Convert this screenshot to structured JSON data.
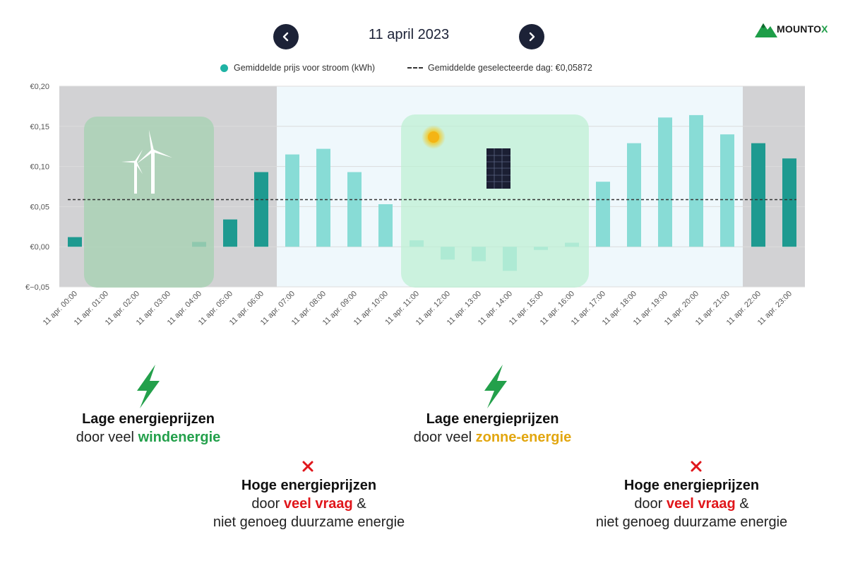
{
  "header": {
    "date": "11 april 2023",
    "prev_icon": "chevron-left-icon",
    "next_icon": "chevron-right-icon"
  },
  "logo": {
    "text_main": "MOUNTO",
    "text_accent": "X"
  },
  "legend": {
    "avg_price": "Gemiddelde prijs voor stroom (kWh)",
    "avg_day": "Gemiddelde geselecteerde dag: €0,05872"
  },
  "colors": {
    "bar_light": "#88dcd6",
    "bar_dark": "#1e9a90",
    "zone_gray": "#d2d2d4",
    "zone_light": "#eff8fc",
    "wind_box": "#a8d2b4",
    "solar_box": "#bdf0d2",
    "green": "#23a04b",
    "red": "#e0161b",
    "orange": "#e2a60f"
  },
  "chart_data": {
    "type": "bar",
    "categories": [
      "11 apr. 00:00",
      "11 apr. 01:00",
      "11 apr. 02:00",
      "11 apr. 03:00",
      "11 apr. 04:00",
      "11 apr. 05:00",
      "11 apr. 06:00",
      "11 apr. 07:00",
      "11 apr. 08:00",
      "11 apr. 09:00",
      "11 apr. 10:00",
      "11 apr. 11:00",
      "11 apr. 12:00",
      "11 apr. 13:00",
      "11 apr. 14:00",
      "11 apr. 15:00",
      "11 apr. 16:00",
      "11 apr. 17:00",
      "11 apr. 18:00",
      "11 apr. 19:00",
      "11 apr. 20:00",
      "11 apr. 21:00",
      "11 apr. 22:00",
      "11 apr. 23:00"
    ],
    "values": [
      0.012,
      0.0,
      0.0,
      0.0,
      0.006,
      0.034,
      0.093,
      0.115,
      0.122,
      0.093,
      0.053,
      0.008,
      -0.016,
      -0.018,
      -0.03,
      -0.004,
      0.005,
      0.081,
      0.129,
      0.161,
      0.164,
      0.14,
      0.129,
      0.11
    ],
    "bar_shade": [
      "dark",
      "dark",
      "dark",
      "dark",
      "dark",
      "dark",
      "dark",
      "light",
      "light",
      "light",
      "light",
      "light",
      "light",
      "light",
      "light",
      "light",
      "light",
      "light",
      "light",
      "light",
      "light",
      "light",
      "dark",
      "dark"
    ],
    "average": 0.05872,
    "ylim": [
      -0.05,
      0.2
    ],
    "yticks": [
      -0.05,
      0.0,
      0.05,
      0.1,
      0.15,
      0.2
    ],
    "ytick_labels": [
      "€−0,05",
      "€0,00",
      "€0,05",
      "€0,10",
      "€0,15",
      "€0,20"
    ],
    "grid": true,
    "legend_position": "top-center",
    "zones": [
      {
        "from": 0,
        "to": 7,
        "shade": "gray"
      },
      {
        "from": 7,
        "to": 22,
        "shade": "light"
      },
      {
        "from": 22,
        "to": 24,
        "shade": "gray"
      }
    ]
  },
  "callouts": {
    "wind": {
      "head": "Lage energieprijzen",
      "pre": "door veel ",
      "accent": "windenergie",
      "icon": "lightning-icon"
    },
    "solar": {
      "head": "Lage energieprijzen",
      "pre": "door veel ",
      "accent": "zonne-energie",
      "icon": "lightning-icon"
    },
    "demand_morning": {
      "head": "Hoge energieprijzen",
      "pre": "door ",
      "accent": "veel vraag",
      "post": " &",
      "line3": "niet genoeg duurzame energie",
      "icon": "cross-icon"
    },
    "demand_evening": {
      "head": "Hoge energieprijzen",
      "pre": "door ",
      "accent": "veel vraag",
      "post": " &",
      "line3": "niet genoeg duurzame energie",
      "icon": "cross-icon"
    }
  }
}
